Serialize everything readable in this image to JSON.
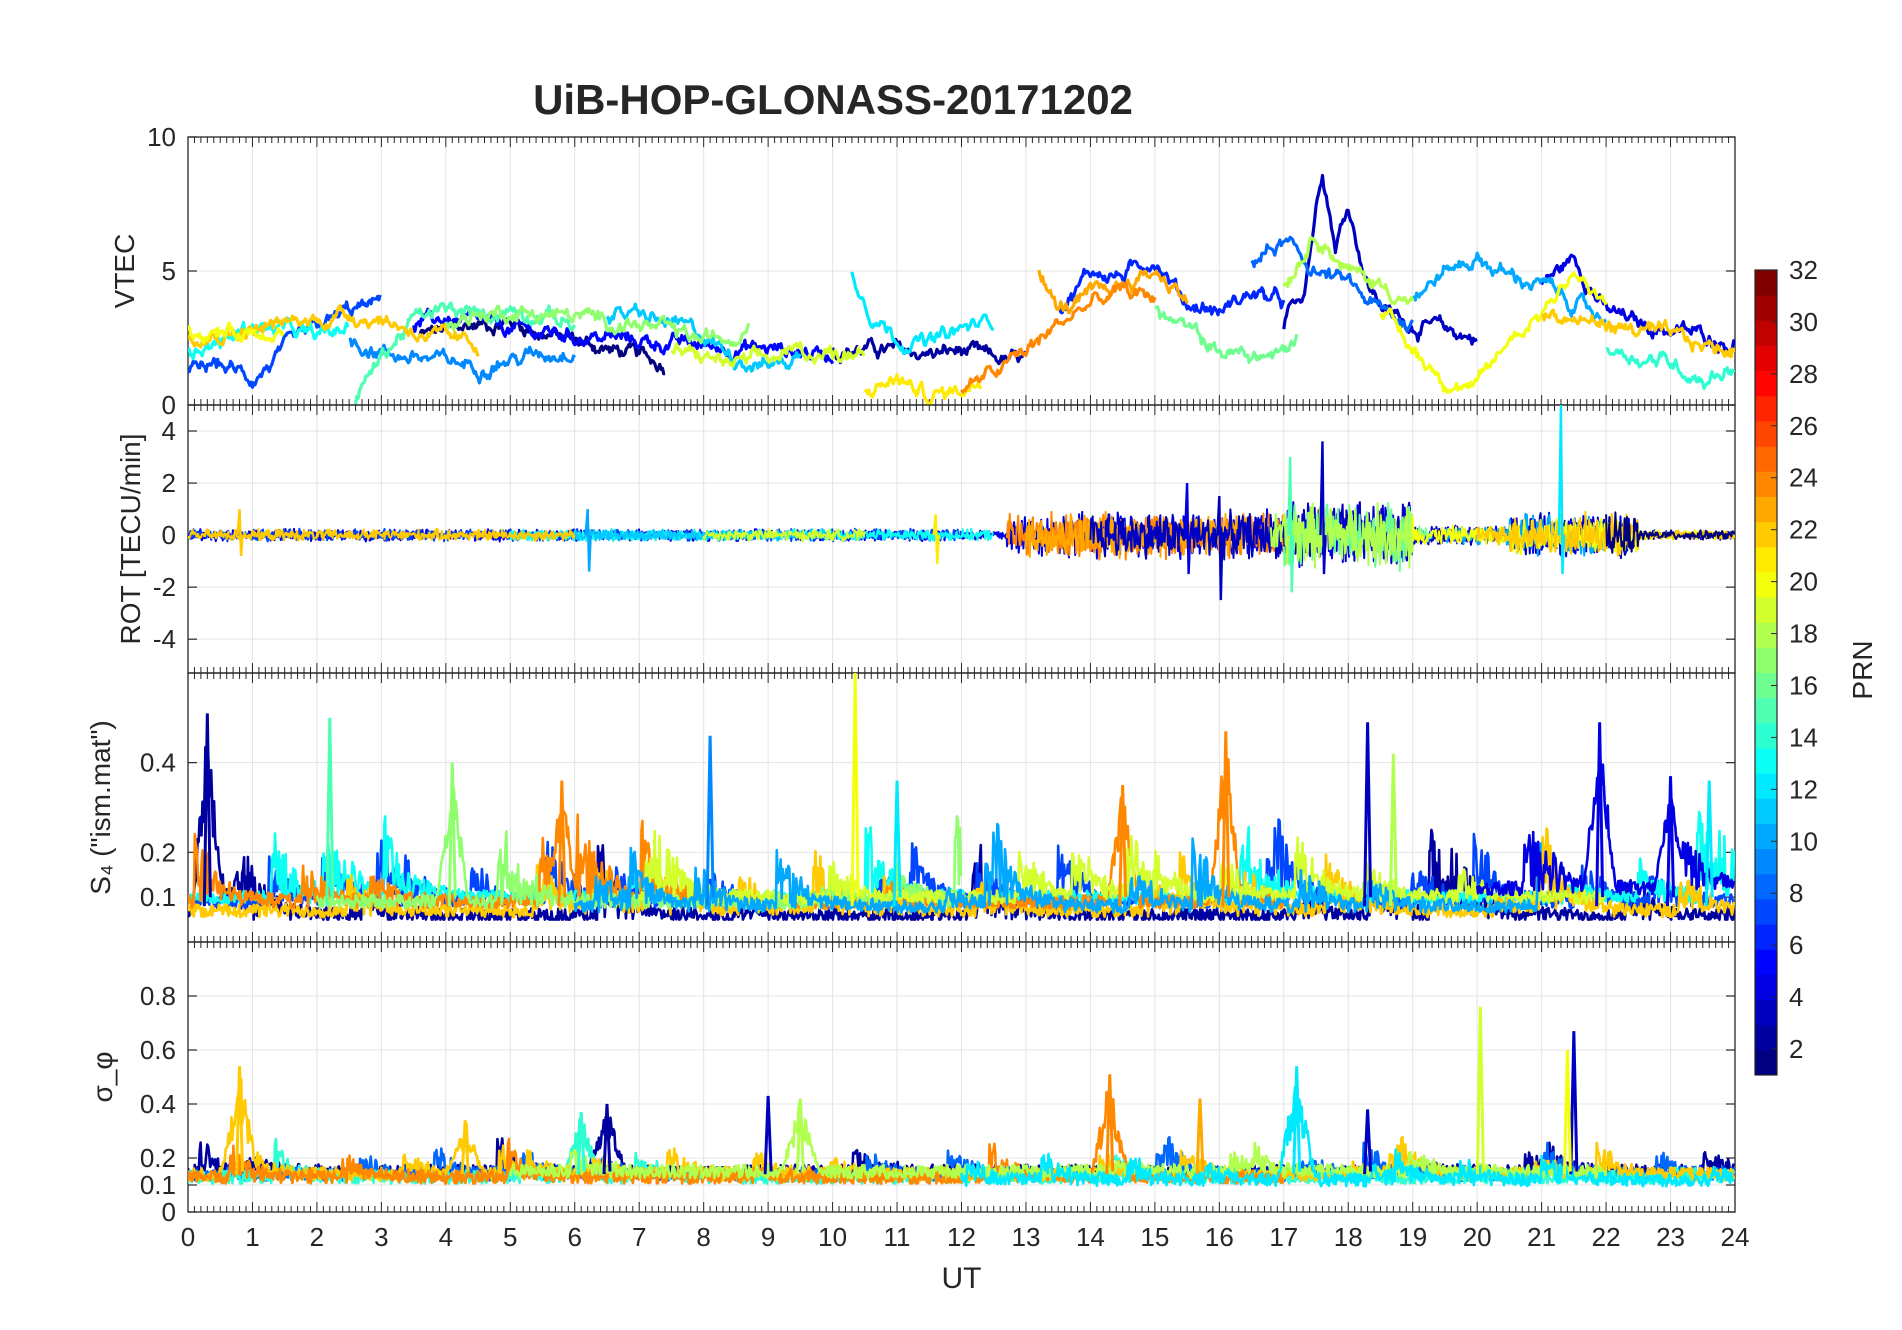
{
  "figure": {
    "title": "UiB-HOP-GLONASS-20171202"
  },
  "chart_data": [
    {
      "type": "line",
      "panel": "vtec",
      "ylabel": "VTEC",
      "ylim": [
        0,
        10
      ],
      "yticks": [
        0,
        5,
        10
      ],
      "grid": true,
      "series_note_colors_by_prn": true,
      "series": [
        {
          "prn": 1,
          "x": [
            3.6,
            4.5,
            5.0,
            5.5,
            6.0,
            6.5,
            7.0,
            7.4
          ],
          "y": [
            2.6,
            3.0,
            3.1,
            2.7,
            2.4,
            2.1,
            1.8,
            1.5
          ]
        },
        {
          "prn": 2,
          "x": [
            10.0,
            10.5,
            11.0,
            11.5,
            12.0,
            12.5,
            13.0
          ],
          "y": [
            2.0,
            2.1,
            2.0,
            1.9,
            2.0,
            1.7,
            1.6
          ]
        },
        {
          "prn": 3,
          "x": [
            17.0,
            17.3,
            17.6,
            17.8,
            18.0,
            18.3,
            18.6,
            19.0,
            19.5,
            20.0
          ],
          "y": [
            3.0,
            4.2,
            9.0,
            6.0,
            7.5,
            4.5,
            3.5,
            3.0,
            2.8,
            2.5
          ]
        },
        {
          "prn": 4,
          "x": [
            21.0,
            21.5,
            22.0,
            22.5,
            23.0,
            23.5,
            24.0
          ],
          "y": [
            4.5,
            5.5,
            3.5,
            3.0,
            2.8,
            2.6,
            2.3
          ]
        },
        {
          "prn": 5,
          "x": [
            3.5,
            4.0,
            5.0,
            6.0,
            7.0,
            8.0,
            9.0,
            10.0
          ],
          "y": [
            3.0,
            3.2,
            2.8,
            2.6,
            2.4,
            2.2,
            2.1,
            1.9
          ]
        },
        {
          "prn": 6,
          "x": [
            13.5,
            14.0,
            14.5,
            15.0,
            15.5,
            16.0,
            16.5,
            17.0
          ],
          "y": [
            3.5,
            5.0,
            4.8,
            5.5,
            3.8,
            3.5,
            4.2,
            3.8
          ]
        },
        {
          "prn": 7,
          "x": [
            0.0,
            0.5,
            1.0,
            1.5,
            2.0,
            2.5,
            3.0
          ],
          "y": [
            1.2,
            1.5,
            1.0,
            2.0,
            2.8,
            3.5,
            3.8
          ]
        },
        {
          "prn": 8,
          "x": [
            16.5,
            17.0,
            17.5,
            18.0,
            18.5,
            19.0
          ],
          "y": [
            5.5,
            6.0,
            5.0,
            4.5,
            3.5,
            3.0
          ]
        },
        {
          "prn": 9,
          "x": [
            2.5,
            3.0,
            3.5,
            4.0,
            4.5,
            5.0,
            6.0
          ],
          "y": [
            2.5,
            2.0,
            1.8,
            1.6,
            1.5,
            1.7,
            2.1
          ]
        },
        {
          "prn": 10,
          "x": [
            19.0,
            19.5,
            20.0,
            20.5,
            21.0,
            21.5,
            22.0
          ],
          "y": [
            4.0,
            5.0,
            5.5,
            4.8,
            4.5,
            3.8,
            3.2
          ]
        },
        {
          "prn": 11,
          "x": [
            6.5,
            7.0,
            7.5,
            8.0,
            8.5,
            9.0,
            9.5
          ],
          "y": [
            3.5,
            3.3,
            3.0,
            2.6,
            1.8,
            1.5,
            1.8
          ]
        },
        {
          "prn": 12,
          "x": [
            10.3,
            10.6,
            11.0,
            11.5,
            12.0,
            12.5
          ],
          "y": [
            5.0,
            3.5,
            2.5,
            2.3,
            2.8,
            3.2
          ]
        },
        {
          "prn": 13,
          "x": [
            0.0,
            0.5,
            1.0,
            1.5,
            2.0,
            2.5
          ],
          "y": [
            2.0,
            2.3,
            3.0,
            2.8,
            2.5,
            2.9
          ]
        },
        {
          "prn": 14,
          "x": [
            22.0,
            22.5,
            23.0,
            23.5,
            24.0
          ],
          "y": [
            2.2,
            1.8,
            1.6,
            1.0,
            1.4
          ]
        },
        {
          "prn": 15,
          "x": [
            2.6,
            3.0,
            3.5,
            4.0,
            4.5,
            5.0,
            5.5,
            6.0
          ],
          "y": [
            0.2,
            1.8,
            3.2,
            3.5,
            3.3,
            3.6,
            3.4,
            3.0
          ]
        },
        {
          "prn": 16,
          "x": [
            15.0,
            15.5,
            16.0,
            16.5,
            17.0,
            17.2
          ],
          "y": [
            3.5,
            2.8,
            2.0,
            1.8,
            1.9,
            2.5
          ]
        },
        {
          "prn": 17,
          "x": [
            4.0,
            5.0,
            6.0,
            7.0,
            7.5,
            8.0,
            8.5,
            8.7
          ],
          "y": [
            3.2,
            3.5,
            3.3,
            3.0,
            2.7,
            2.4,
            2.6,
            3.2
          ]
        },
        {
          "prn": 18,
          "x": [
            17.0,
            17.5,
            18.0,
            18.5,
            19.0
          ],
          "y": [
            4.5,
            6.5,
            5.0,
            4.5,
            3.8
          ]
        },
        {
          "prn": 19,
          "x": [
            7.5,
            8.0,
            8.5,
            9.0,
            9.5,
            10.0,
            10.5
          ],
          "y": [
            2.0,
            1.8,
            1.5,
            1.7,
            2.0,
            1.9,
            2.2
          ]
        },
        {
          "prn": 20,
          "x": [
            18.5,
            19.0,
            19.5,
            20.0,
            20.5,
            21.0,
            21.5,
            22.0
          ],
          "y": [
            3.5,
            2.0,
            1.0,
            0.6,
            2.5,
            3.5,
            5.0,
            3.5
          ]
        },
        {
          "prn": 21,
          "x": [
            10.5,
            11.0,
            11.5,
            12.0,
            12.3
          ],
          "y": [
            0.5,
            1.0,
            0.3,
            0.6,
            1.0
          ]
        },
        {
          "prn": 22,
          "x": [
            0.0,
            0.5,
            1.0,
            1.5,
            2.0,
            2.5,
            3.0,
            3.5,
            4.0,
            4.5
          ],
          "y": [
            2.6,
            2.7,
            2.8,
            3.0,
            3.2,
            3.4,
            3.2,
            2.8,
            2.4,
            2.2
          ]
        },
        {
          "prn": 23,
          "x": [
            13.2,
            13.5,
            14.0,
            14.5,
            15.0,
            15.5
          ],
          "y": [
            5.0,
            3.5,
            4.0,
            4.5,
            5.0,
            4.0
          ]
        },
        {
          "prn": 24,
          "x": [
            12.0,
            12.5,
            13.0,
            13.5,
            14.0,
            14.5,
            15.0
          ],
          "y": [
            0.5,
            1.2,
            2.0,
            3.0,
            3.8,
            4.2,
            4.0
          ]
        },
        {
          "prn": 22,
          "x": [
            21.0,
            21.5,
            22.0,
            22.5,
            23.0,
            23.5,
            24.0
          ],
          "y": [
            3.5,
            3.2,
            3.0,
            2.8,
            2.5,
            2.2,
            2.0
          ]
        },
        {
          "prn": 20,
          "x": [
            0.0,
            0.3,
            0.6,
            1.0,
            1.5
          ],
          "y": [
            3.0,
            2.6,
            2.7,
            2.8,
            2.9
          ]
        }
      ]
    },
    {
      "type": "line",
      "panel": "rot",
      "ylabel": "ROT [TECU/min]",
      "ylim": [
        -5.3,
        5.0
      ],
      "yticks": [
        -4,
        -2,
        0,
        2,
        4
      ],
      "grid": true,
      "note": "rapid fluctuations about 0; largest excursions below",
      "spikes": [
        {
          "prn": 4,
          "x": 15.5,
          "ymin": -1.5,
          "ymax": 2.0
        },
        {
          "prn": 3,
          "x": 16.0,
          "ymin": -2.5,
          "ymax": 1.5
        },
        {
          "prn": 3,
          "x": 17.6,
          "ymin": -1.5,
          "ymax": 3.6
        },
        {
          "prn": 15,
          "x": 17.1,
          "ymin": -2.2,
          "ymax": 3.0
        },
        {
          "prn": 12,
          "x": 21.3,
          "ymin": -1.5,
          "ymax": 5.0
        },
        {
          "prn": 10,
          "x": 6.2,
          "ymin": -1.4,
          "ymax": 1.0
        },
        {
          "prn": 22,
          "x": 0.8,
          "ymin": -0.8,
          "ymax": 1.0
        },
        {
          "prn": 21,
          "x": 11.6,
          "ymin": -1.1,
          "ymax": 0.8
        }
      ],
      "activity_envelope": [
        {
          "x": [
            0,
            12.7
          ],
          "amp": 0.25
        },
        {
          "x": [
            12.7,
            17.0
          ],
          "amp": 1.0
        },
        {
          "x": [
            17.0,
            19.0
          ],
          "amp": 1.4
        },
        {
          "x": [
            19.0,
            20.5
          ],
          "amp": 0.4
        },
        {
          "x": [
            20.5,
            22.5
          ],
          "amp": 0.9
        },
        {
          "x": [
            22.5,
            24.0
          ],
          "amp": 0.2
        }
      ]
    },
    {
      "type": "line",
      "panel": "s4",
      "ylabel": "S₄ (\"ism.mat\")",
      "ylim": [
        0,
        0.6
      ],
      "yticks": [
        0.1,
        0.2,
        0.4
      ],
      "grid": true,
      "background_level": 0.08,
      "peaks": [
        {
          "prn": 2,
          "x": 0.3,
          "y": 0.51
        },
        {
          "prn": 15,
          "x": 2.2,
          "y": 0.5
        },
        {
          "prn": 17,
          "x": 4.1,
          "y": 0.4
        },
        {
          "prn": 24,
          "x": 5.8,
          "y": 0.36
        },
        {
          "prn": 9,
          "x": 8.1,
          "y": 0.46
        },
        {
          "prn": 20,
          "x": 10.35,
          "y": 0.6
        },
        {
          "prn": 12,
          "x": 11.0,
          "y": 0.36
        },
        {
          "prn": 24,
          "x": 14.5,
          "y": 0.35
        },
        {
          "prn": 24,
          "x": 16.1,
          "y": 0.47
        },
        {
          "prn": 3,
          "x": 18.3,
          "y": 0.49
        },
        {
          "prn": 18,
          "x": 18.7,
          "y": 0.42
        },
        {
          "prn": 4,
          "x": 21.9,
          "y": 0.49
        },
        {
          "prn": 4,
          "x": 23.0,
          "y": 0.37
        },
        {
          "prn": 12,
          "x": 23.6,
          "y": 0.36
        }
      ]
    },
    {
      "type": "line",
      "panel": "sigma_phi",
      "ylabel": "σ_φ",
      "ylim": [
        0,
        1.0
      ],
      "yticks": [
        0,
        0.1,
        0.2,
        0.4,
        0.6,
        0.8
      ],
      "xlabel": "UT",
      "xlim": [
        0,
        24
      ],
      "xticks": [
        0,
        1,
        2,
        3,
        4,
        5,
        6,
        7,
        8,
        9,
        10,
        11,
        12,
        13,
        14,
        15,
        16,
        17,
        18,
        19,
        20,
        21,
        22,
        23,
        24
      ],
      "grid": true,
      "background_level": 0.14,
      "peaks": [
        {
          "prn": 22,
          "x": 0.8,
          "y": 0.54
        },
        {
          "prn": 22,
          "x": 4.3,
          "y": 0.34
        },
        {
          "prn": 14,
          "x": 6.1,
          "y": 0.37
        },
        {
          "prn": 2,
          "x": 6.5,
          "y": 0.4
        },
        {
          "prn": 3,
          "x": 9.0,
          "y": 0.43
        },
        {
          "prn": 18,
          "x": 9.5,
          "y": 0.42
        },
        {
          "prn": 24,
          "x": 14.3,
          "y": 0.51
        },
        {
          "prn": 23,
          "x": 15.7,
          "y": 0.42
        },
        {
          "prn": 12,
          "x": 17.2,
          "y": 0.54
        },
        {
          "prn": 3,
          "x": 18.3,
          "y": 0.38
        },
        {
          "prn": 19,
          "x": 20.05,
          "y": 0.76
        },
        {
          "prn": 3,
          "x": 21.5,
          "y": 0.67
        },
        {
          "prn": 20,
          "x": 21.4,
          "y": 0.6
        }
      ]
    }
  ],
  "colorbar": {
    "label": "PRN",
    "range": [
      1,
      32
    ],
    "ticks": [
      2,
      4,
      6,
      8,
      10,
      12,
      14,
      16,
      18,
      20,
      22,
      24,
      26,
      28,
      30,
      32
    ],
    "colormap": "jet",
    "levels": 32
  }
}
